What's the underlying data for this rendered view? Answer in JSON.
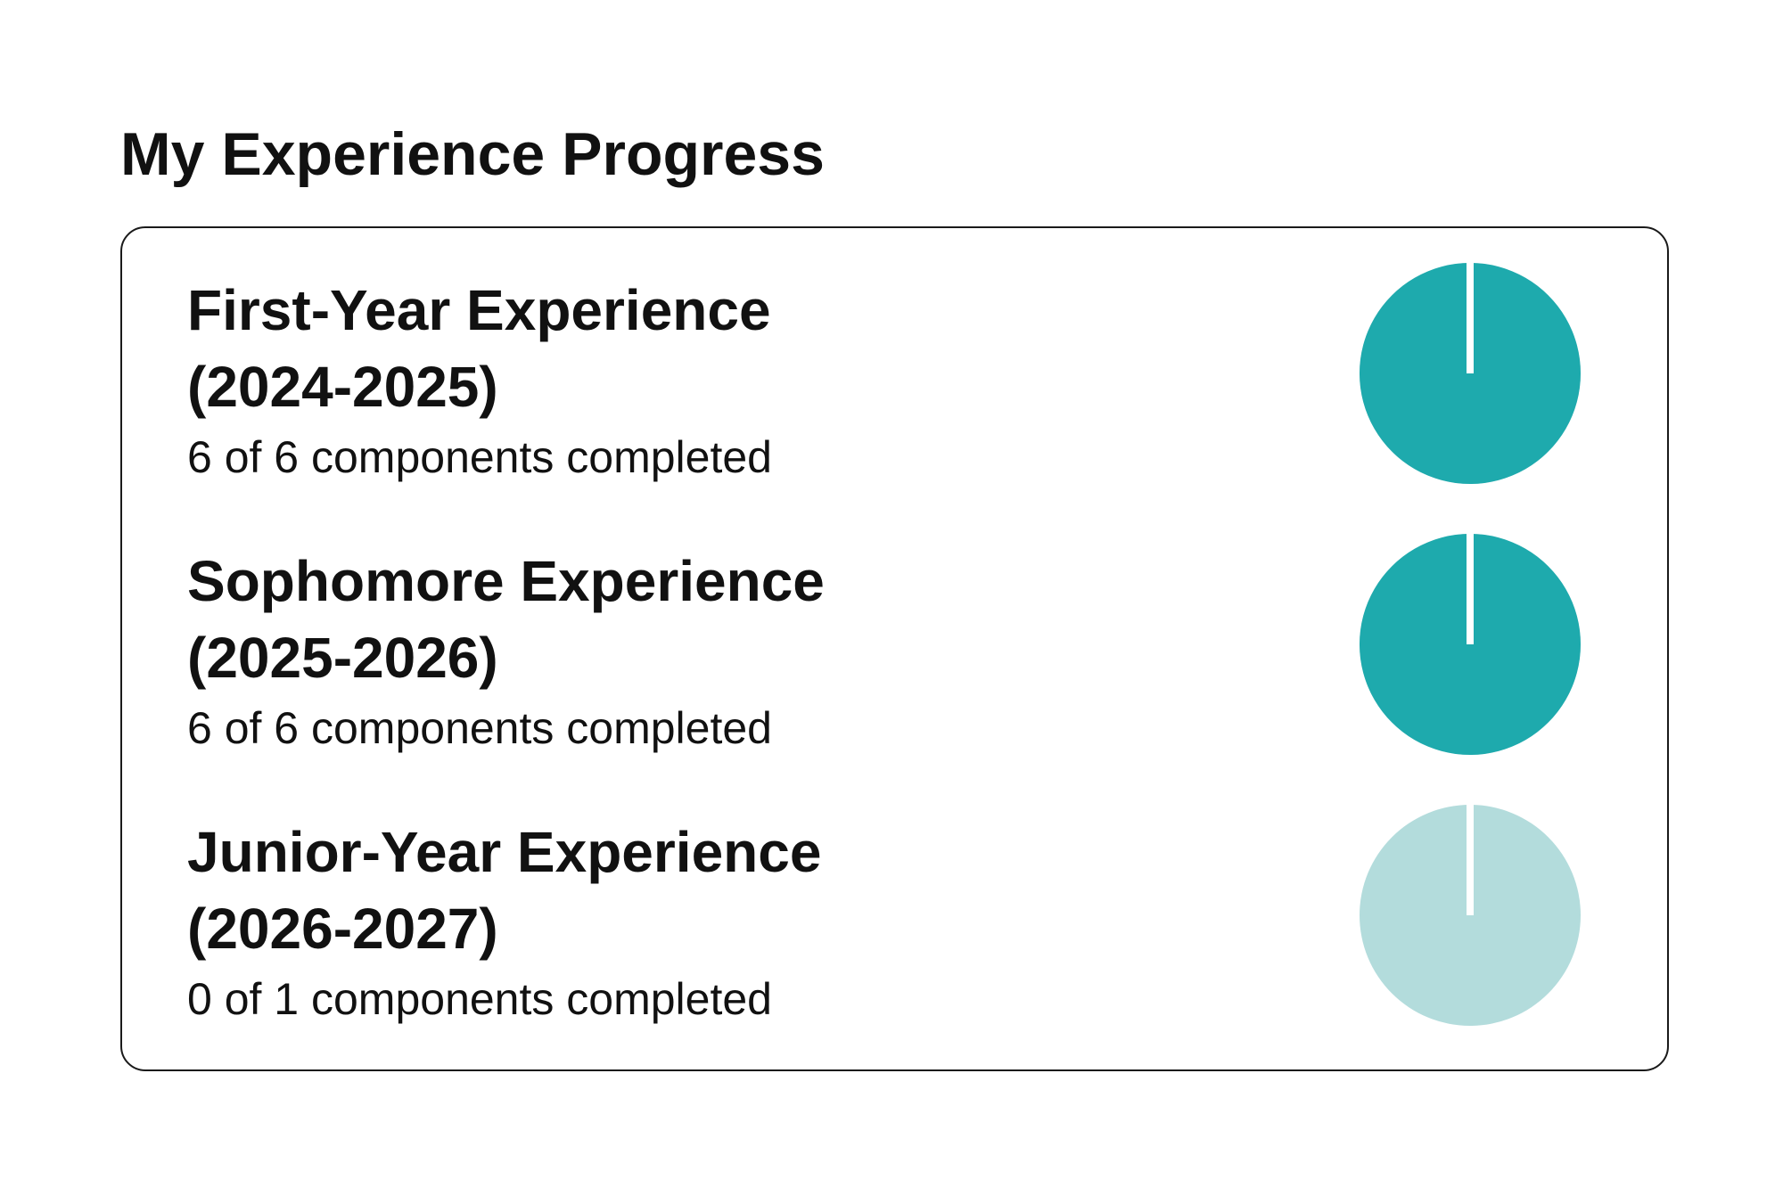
{
  "page": {
    "title": "My Experience Progress"
  },
  "colors": {
    "complete": "#1eaaad",
    "incomplete": "#b3dcdc",
    "divider": "#ffffff",
    "border": "#1a1a1a",
    "text": "#111111"
  },
  "experiences": [
    {
      "title": "First-Year Experience",
      "years": "(2024-2025)",
      "status": "6 of 6 components completed",
      "completed": 6,
      "total": 6,
      "progress_fraction": 1.0
    },
    {
      "title": "Sophomore Experience",
      "years": "(2025-2026)",
      "status": "6 of 6 components completed",
      "completed": 6,
      "total": 6,
      "progress_fraction": 1.0
    },
    {
      "title": "Junior-Year Experience",
      "years": "(2026-2027)",
      "status": "0 of 1 components completed",
      "completed": 0,
      "total": 1,
      "progress_fraction": 0.0
    }
  ]
}
